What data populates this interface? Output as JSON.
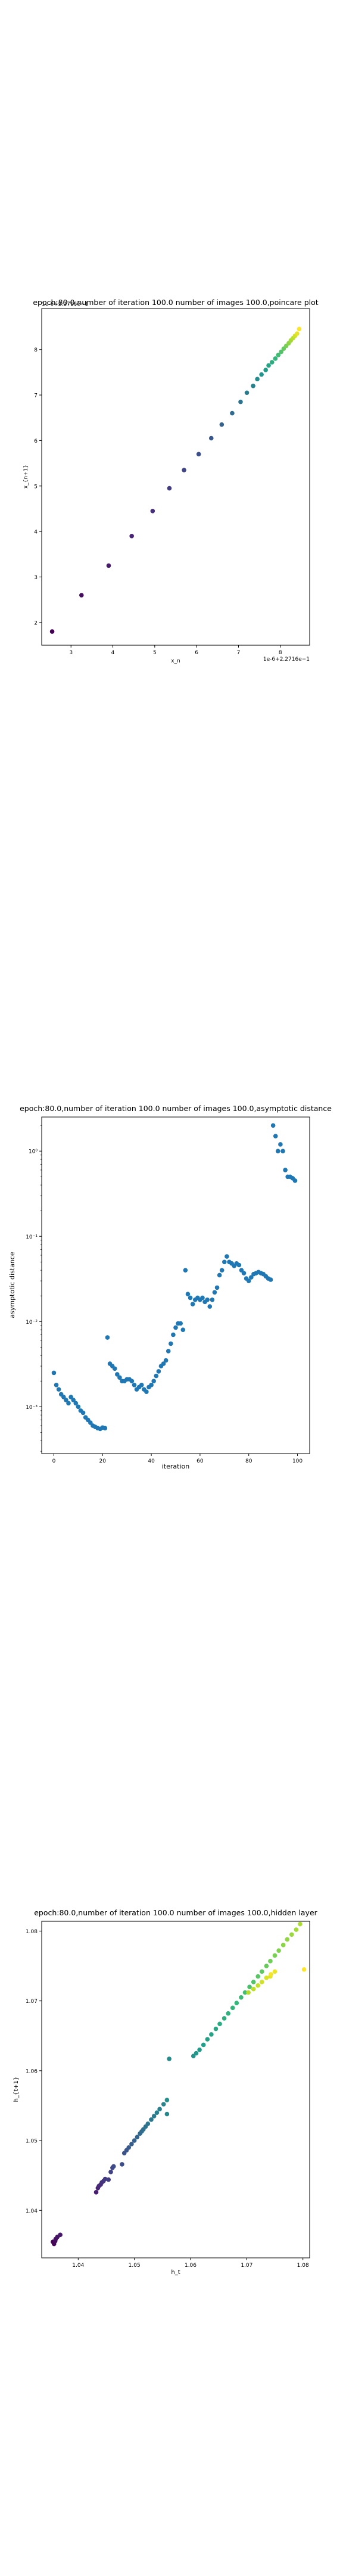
{
  "chart_data": [
    {
      "type": "scatter",
      "title": "epoch:80.0,number of iteration 100.0 number of images 100.0,poincare plot",
      "xlabel": "x_n",
      "ylabel": "x_{n+1}",
      "x_offset_label": "1e-6+2.2716e−1",
      "y_offset_label": "1e-6+2.2716e−1",
      "xlim": [
        2.3,
        8.7
      ],
      "ylim": [
        1.5,
        8.9
      ],
      "xticks": [
        3,
        4,
        5,
        6,
        7,
        8
      ],
      "yticks": [
        2,
        3,
        4,
        5,
        6,
        7,
        8
      ],
      "yscale": "linear",
      "grid": false,
      "colormap": "viridis",
      "x": [
        2.55,
        3.25,
        3.9,
        4.45,
        4.95,
        5.35,
        5.7,
        6.05,
        6.35,
        6.6,
        6.85,
        7.05,
        7.2,
        7.35,
        7.45,
        7.55,
        7.65,
        7.72,
        7.8,
        7.88,
        7.95,
        8.02,
        8.08,
        8.14,
        8.2,
        8.25,
        8.3,
        8.35,
        8.4,
        8.45
      ],
      "y": [
        1.8,
        2.6,
        3.25,
        3.9,
        4.45,
        4.95,
        5.35,
        5.7,
        6.05,
        6.35,
        6.6,
        6.85,
        7.05,
        7.2,
        7.35,
        7.45,
        7.55,
        7.65,
        7.72,
        7.8,
        7.88,
        7.95,
        8.02,
        8.08,
        8.14,
        8.2,
        8.25,
        8.3,
        8.35,
        8.45
      ]
    },
    {
      "type": "scatter",
      "title": "epoch:80.0,number of iteration 100.0  number of images 100.0,asymptotic distance",
      "xlabel": "iteration",
      "ylabel": "asymptotic distance",
      "xlim": [
        -5,
        105
      ],
      "ylim_log10": [
        -3.55,
        0.4
      ],
      "xticks": [
        0,
        20,
        40,
        60,
        80,
        100
      ],
      "yticks_log10": [
        -3,
        -2,
        -1,
        0
      ],
      "ytick_labels": [
        "10⁻³",
        "10⁻²",
        "10⁻¹",
        "10⁰"
      ],
      "yscale": "log",
      "grid": false,
      "color": "#1f77b4",
      "x": [
        0,
        1,
        2,
        3,
        4,
        5,
        6,
        7,
        8,
        9,
        10,
        11,
        12,
        13,
        14,
        15,
        16,
        17,
        18,
        19,
        20,
        21,
        22,
        23,
        24,
        25,
        26,
        27,
        28,
        29,
        30,
        31,
        32,
        33,
        34,
        35,
        36,
        37,
        38,
        39,
        40,
        41,
        42,
        43,
        44,
        45,
        46,
        47,
        48,
        49,
        50,
        51,
        52,
        53,
        54,
        55,
        56,
        57,
        58,
        59,
        60,
        61,
        62,
        63,
        64,
        65,
        66,
        67,
        68,
        69,
        70,
        71,
        72,
        73,
        74,
        75,
        76,
        77,
        78,
        79,
        80,
        81,
        82,
        83,
        84,
        85,
        86,
        87,
        88,
        89,
        90,
        91,
        92,
        93,
        94,
        95,
        96,
        97,
        98,
        99
      ],
      "y": [
        0.0025,
        0.0018,
        0.0016,
        0.0014,
        0.0013,
        0.0012,
        0.0011,
        0.0013,
        0.0012,
        0.0011,
        0.001,
        0.0009,
        0.00085,
        0.00075,
        0.0007,
        0.00065,
        0.0006,
        0.00058,
        0.00056,
        0.00055,
        0.00057,
        0.00056,
        0.0065,
        0.0032,
        0.003,
        0.0028,
        0.0024,
        0.0022,
        0.002,
        0.002,
        0.0021,
        0.0021,
        0.002,
        0.0018,
        0.0016,
        0.0017,
        0.0018,
        0.0016,
        0.0015,
        0.0017,
        0.0018,
        0.002,
        0.0023,
        0.0026,
        0.003,
        0.0032,
        0.0035,
        0.0045,
        0.0055,
        0.007,
        0.0085,
        0.0095,
        0.0095,
        0.008,
        0.04,
        0.021,
        0.019,
        0.016,
        0.018,
        0.019,
        0.018,
        0.019,
        0.017,
        0.018,
        0.015,
        0.018,
        0.022,
        0.025,
        0.035,
        0.04,
        0.05,
        0.058,
        0.05,
        0.048,
        0.045,
        0.048,
        0.046,
        0.04,
        0.037,
        0.032,
        0.03,
        0.033,
        0.036,
        0.037,
        0.038,
        0.037,
        0.036,
        0.034,
        0.032,
        0.031,
        2.0,
        1.5,
        1.0,
        1.2,
        1.0,
        0.6,
        0.5,
        0.5,
        0.48,
        0.45
      ]
    },
    {
      "type": "scatter",
      "title": "epoch:80.0,number of iteration 100.0  number of images 100.0,hidden layer",
      "xlabel": "h_t",
      "ylabel": "h_{t+1}",
      "xlim": [
        1.0335,
        1.0812
      ],
      "ylim": [
        1.0332,
        1.0814
      ],
      "xticks": [
        1.04,
        1.05,
        1.06,
        1.07,
        1.08
      ],
      "yticks": [
        1.04,
        1.05,
        1.06,
        1.07,
        1.08
      ],
      "grid": false,
      "colormap": "viridis",
      "x": [
        1.0355,
        1.0357,
        1.0359,
        1.036,
        1.0363,
        1.0368,
        1.0432,
        1.0435,
        1.0437,
        1.044,
        1.0442,
        1.0445,
        1.0448,
        1.0454,
        1.0458,
        1.0461,
        1.0463,
        1.0478,
        1.0482,
        1.0486,
        1.049,
        1.0495,
        1.05,
        1.0505,
        1.051,
        1.0513,
        1.0516,
        1.052,
        1.0524,
        1.053,
        1.0535,
        1.054,
        1.0545,
        1.0552,
        1.0558,
        1.0562,
        1.0558,
        1.0605,
        1.061,
        1.0616,
        1.0623,
        1.063,
        1.0637,
        1.0645,
        1.0652,
        1.066,
        1.0667,
        1.0675,
        1.0682,
        1.069,
        1.0697,
        1.0705,
        1.0712,
        1.072,
        1.0727,
        1.0735,
        1.0742,
        1.075,
        1.0757,
        1.0765,
        1.0772,
        1.078,
        1.0788,
        1.0795,
        1.0703,
        1.0712,
        1.072,
        1.0727,
        1.0735,
        1.0742,
        1.075,
        1.0743,
        1.0802
      ],
      "y": [
        1.0355,
        1.0352,
        1.0356,
        1.0359,
        1.0362,
        1.0365,
        1.0426,
        1.0432,
        1.0435,
        1.0437,
        1.044,
        1.0442,
        1.0445,
        1.0444,
        1.0455,
        1.0461,
        1.0463,
        1.0466,
        1.0482,
        1.0486,
        1.049,
        1.0495,
        1.05,
        1.0505,
        1.051,
        1.0513,
        1.0516,
        1.052,
        1.0524,
        1.053,
        1.0535,
        1.054,
        1.0545,
        1.0552,
        1.0538,
        1.0617,
        1.0558,
        1.0621,
        1.0625,
        1.063,
        1.0637,
        1.0645,
        1.0652,
        1.066,
        1.0667,
        1.0675,
        1.0682,
        1.069,
        1.0697,
        1.0705,
        1.0712,
        1.072,
        1.0727,
        1.0735,
        1.0742,
        1.075,
        1.0757,
        1.0765,
        1.0772,
        1.078,
        1.0788,
        1.0795,
        1.0802,
        1.081,
        1.0712,
        1.0717,
        1.0722,
        1.0727,
        1.0733,
        1.0735,
        1.0742,
        1.0738,
        1.0745
      ]
    }
  ]
}
